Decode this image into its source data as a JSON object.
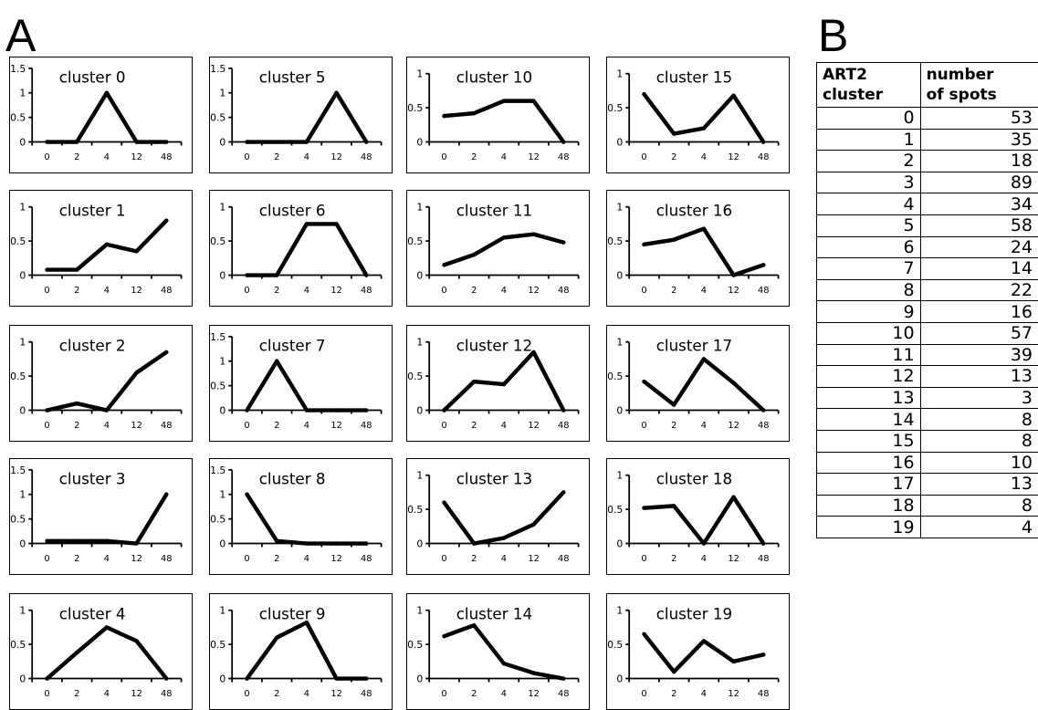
{
  "panel_labels": {
    "a": "A",
    "b": "B"
  },
  "table": {
    "headers": [
      [
        "ART2",
        "cluster"
      ],
      [
        "number",
        "of spots"
      ]
    ],
    "rows": [
      [
        "0",
        "53"
      ],
      [
        "1",
        "35"
      ],
      [
        "2",
        "18"
      ],
      [
        "3",
        "89"
      ],
      [
        "4",
        "34"
      ],
      [
        "5",
        "58"
      ],
      [
        "6",
        "24"
      ],
      [
        "7",
        "14"
      ],
      [
        "8",
        "22"
      ],
      [
        "9",
        "16"
      ],
      [
        "10",
        "57"
      ],
      [
        "11",
        "39"
      ],
      [
        "12",
        "13"
      ],
      [
        "13",
        "3"
      ],
      [
        "14",
        "8"
      ],
      [
        "15",
        "8"
      ],
      [
        "16",
        "10"
      ],
      [
        "17",
        "13"
      ],
      [
        "18",
        "8"
      ],
      [
        "19",
        "4"
      ]
    ]
  },
  "chart_data": [
    {
      "type": "line",
      "title": "cluster 0",
      "categories": [
        "0",
        "2",
        "4",
        "12",
        "48"
      ],
      "yticks": [
        "0",
        "0.5",
        "1",
        "1.5"
      ],
      "ylim": [
        0,
        1.5
      ],
      "values": [
        0,
        0,
        1,
        0,
        0
      ]
    },
    {
      "type": "line",
      "title": "cluster 5",
      "categories": [
        "0",
        "2",
        "4",
        "12",
        "48"
      ],
      "yticks": [
        "0",
        "0.5",
        "1",
        "1.5"
      ],
      "ylim": [
        0,
        1.5
      ],
      "values": [
        0,
        0,
        0,
        1,
        0
      ]
    },
    {
      "type": "line",
      "title": "cluster 10",
      "categories": [
        "0",
        "2",
        "4",
        "12",
        "48"
      ],
      "yticks": [
        "0",
        "0.5",
        "1"
      ],
      "ylim": [
        0,
        1
      ],
      "values": [
        0.38,
        0.42,
        0.6,
        0.6,
        0
      ]
    },
    {
      "type": "line",
      "title": "cluster 15",
      "categories": [
        "0",
        "2",
        "4",
        "12",
        "48"
      ],
      "yticks": [
        "0",
        "0.5",
        "1"
      ],
      "ylim": [
        0,
        1
      ],
      "values": [
        0.7,
        0.12,
        0.2,
        0.68,
        0
      ]
    },
    {
      "type": "line",
      "title": "cluster 1",
      "categories": [
        "0",
        "2",
        "4",
        "12",
        "48"
      ],
      "yticks": [
        "0",
        "0.5",
        "1"
      ],
      "ylim": [
        0,
        1
      ],
      "values": [
        0.08,
        0.08,
        0.45,
        0.35,
        0.8
      ]
    },
    {
      "type": "line",
      "title": "cluster 6",
      "categories": [
        "0",
        "2",
        "4",
        "12",
        "48"
      ],
      "yticks": [
        "0",
        "0.5",
        "1"
      ],
      "ylim": [
        0,
        1
      ],
      "values": [
        0,
        0,
        0.75,
        0.75,
        0
      ]
    },
    {
      "type": "line",
      "title": "cluster 11",
      "categories": [
        "0",
        "2",
        "4",
        "12",
        "48"
      ],
      "yticks": [
        "0",
        "0.5",
        "1"
      ],
      "ylim": [
        0,
        1
      ],
      "values": [
        0.15,
        0.3,
        0.55,
        0.6,
        0.48
      ]
    },
    {
      "type": "line",
      "title": "cluster 16",
      "categories": [
        "0",
        "2",
        "4",
        "12",
        "48"
      ],
      "yticks": [
        "0",
        "0.5",
        "1"
      ],
      "ylim": [
        0,
        1
      ],
      "values": [
        0.45,
        0.52,
        0.68,
        0,
        0.15
      ]
    },
    {
      "type": "line",
      "title": "cluster 2",
      "categories": [
        "0",
        "2",
        "4",
        "12",
        "48"
      ],
      "yticks": [
        "0",
        "0.5",
        "1"
      ],
      "ylim": [
        0,
        1
      ],
      "values": [
        0,
        0.1,
        0,
        0.55,
        0.85
      ]
    },
    {
      "type": "line",
      "title": "cluster 7",
      "categories": [
        "0",
        "2",
        "4",
        "12",
        "48"
      ],
      "yticks": [
        "0",
        "0.5",
        "1",
        "1.5"
      ],
      "ylim": [
        0,
        1.5
      ],
      "values": [
        0,
        1,
        0,
        0,
        0
      ]
    },
    {
      "type": "line",
      "title": "cluster 12",
      "categories": [
        "0",
        "2",
        "4",
        "12",
        "48"
      ],
      "yticks": [
        "0",
        "0.5",
        "1"
      ],
      "ylim": [
        0,
        1
      ],
      "values": [
        0,
        0.42,
        0.38,
        0.85,
        0
      ]
    },
    {
      "type": "line",
      "title": "cluster 17",
      "categories": [
        "0",
        "2",
        "4",
        "12",
        "48"
      ],
      "yticks": [
        "0",
        "0.5",
        "1"
      ],
      "ylim": [
        0,
        1
      ],
      "values": [
        0.42,
        0.08,
        0.75,
        0.4,
        0
      ]
    },
    {
      "type": "line",
      "title": "cluster 3",
      "categories": [
        "0",
        "2",
        "4",
        "12",
        "48"
      ],
      "yticks": [
        "0",
        "0.5",
        "1",
        "1.5"
      ],
      "ylim": [
        0,
        1.5
      ],
      "values": [
        0.05,
        0.05,
        0.05,
        0,
        1
      ]
    },
    {
      "type": "line",
      "title": "cluster 8",
      "categories": [
        "0",
        "2",
        "4",
        "12",
        "48"
      ],
      "yticks": [
        "0",
        "0.5",
        "1",
        "1.5"
      ],
      "ylim": [
        0,
        1.5
      ],
      "values": [
        1,
        0.05,
        0,
        0,
        0
      ]
    },
    {
      "type": "line",
      "title": "cluster 13",
      "categories": [
        "0",
        "2",
        "4",
        "12",
        "48"
      ],
      "yticks": [
        "0",
        "0.5",
        "1"
      ],
      "ylim": [
        0,
        1
      ],
      "values": [
        0.6,
        0,
        0.08,
        0.28,
        0.75
      ]
    },
    {
      "type": "line",
      "title": "cluster 18",
      "categories": [
        "0",
        "2",
        "4",
        "12",
        "48"
      ],
      "yticks": [
        "0",
        "0.5",
        "1"
      ],
      "ylim": [
        0,
        1
      ],
      "values": [
        0.52,
        0.55,
        0,
        0.68,
        0
      ]
    },
    {
      "type": "line",
      "title": "cluster 4",
      "categories": [
        "0",
        "2",
        "4",
        "12",
        "48"
      ],
      "yticks": [
        "0",
        "0.5",
        "1"
      ],
      "ylim": [
        0,
        1
      ],
      "values": [
        0,
        0.38,
        0.75,
        0.55,
        0
      ]
    },
    {
      "type": "line",
      "title": "cluster 9",
      "categories": [
        "0",
        "2",
        "4",
        "12",
        "48"
      ],
      "yticks": [
        "0",
        "0.5",
        "1"
      ],
      "ylim": [
        0,
        1
      ],
      "values": [
        0,
        0.6,
        0.82,
        0,
        0
      ]
    },
    {
      "type": "line",
      "title": "cluster 14",
      "categories": [
        "0",
        "2",
        "4",
        "12",
        "48"
      ],
      "yticks": [
        "0",
        "0.5",
        "1"
      ],
      "ylim": [
        0,
        1
      ],
      "values": [
        0.62,
        0.78,
        0.22,
        0.08,
        0
      ]
    },
    {
      "type": "line",
      "title": "cluster 19",
      "categories": [
        "0",
        "2",
        "4",
        "12",
        "48"
      ],
      "yticks": [
        "0",
        "0.5",
        "1"
      ],
      "ylim": [
        0,
        1
      ],
      "values": [
        0.65,
        0.1,
        0.55,
        0.25,
        0.35
      ]
    }
  ]
}
